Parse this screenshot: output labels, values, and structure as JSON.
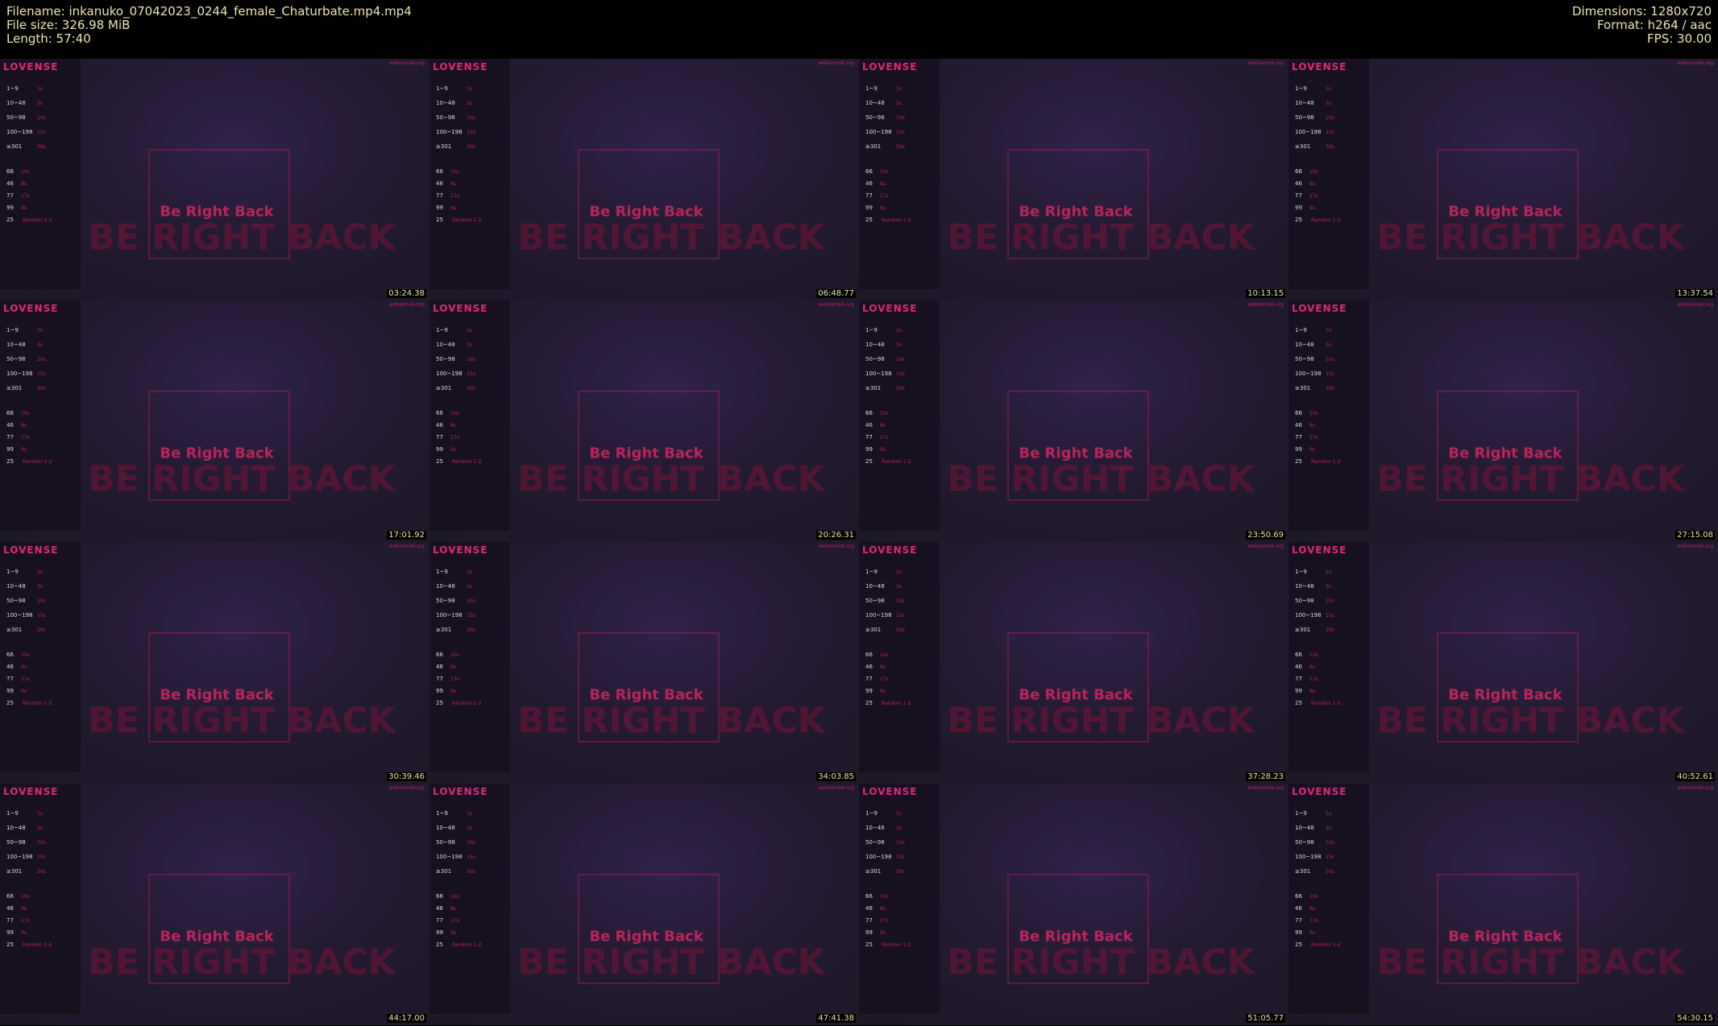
{
  "header": {
    "left": [
      "Filename: inkanuko_07042023_0244_female_Chaturbate.mp4.mp4",
      "File size: 326.98 MiB",
      "Length: 57:40"
    ],
    "right": [
      "Dimensions: 1280x720",
      "Format: h264 / aac",
      "FPS: 30.00"
    ]
  },
  "thumbnail": {
    "brand": "LOVENSE",
    "site": "websemeb.org",
    "title": "Be Right Back",
    "banner": "BE RIGHT BACK",
    "levels": [
      {
        "range": "1~9",
        "time": "1s"
      },
      {
        "range": "10~48",
        "time": "3s"
      },
      {
        "range": "50~98",
        "time": "10s"
      },
      {
        "range": "100~198",
        "time": "15s"
      },
      {
        "range": "≥301",
        "time": "30s"
      }
    ],
    "patterns": [
      {
        "tip": "66",
        "time": "10s"
      },
      {
        "tip": "46",
        "time": "8s"
      },
      {
        "tip": "77",
        "time": "17s"
      },
      {
        "tip": "99",
        "time": "9s"
      },
      {
        "tip": "25",
        "time": "Random 1-2"
      }
    ]
  },
  "timestamps": [
    "03:24.38",
    "06:48.77",
    "10:13.15",
    "13:37.54",
    "17:01.92",
    "20:26.31",
    "23:50.69",
    "27:15.08",
    "30:39.46",
    "34:03.85",
    "37:28.23",
    "40:52.61",
    "44:17.00",
    "47:41.38",
    "51:05.77",
    "54:30.15"
  ]
}
